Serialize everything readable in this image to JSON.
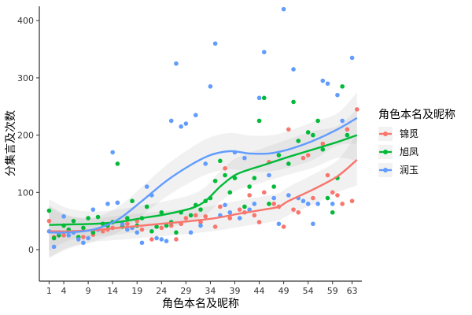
{
  "chart_data": {
    "type": "scatter",
    "title": "",
    "xlabel": "角色本名及昵称",
    "ylabel": "分集言及次数",
    "xlim": [
      -1,
      65
    ],
    "ylim": [
      -55,
      425
    ],
    "x_ticks": [
      1,
      4,
      9,
      14,
      19,
      24,
      29,
      34,
      39,
      44,
      49,
      54,
      59,
      63
    ],
    "y_ticks": [
      0,
      100,
      200,
      300,
      400
    ],
    "legend": {
      "title": "角色本名及昵称",
      "position": "right"
    },
    "series": [
      {
        "name": "锦觅",
        "color": "#F8766D",
        "points": [
          [
            1,
            50
          ],
          [
            2,
            22
          ],
          [
            3,
            28
          ],
          [
            4,
            25
          ],
          [
            6,
            30
          ],
          [
            8,
            22
          ],
          [
            10,
            26
          ],
          [
            12,
            32
          ],
          [
            13,
            35
          ],
          [
            14,
            38
          ],
          [
            15,
            82
          ],
          [
            16,
            44
          ],
          [
            17,
            45
          ],
          [
            19,
            50
          ],
          [
            20,
            35
          ],
          [
            22,
            18
          ],
          [
            24,
            38
          ],
          [
            26,
            42
          ],
          [
            27,
            18
          ],
          [
            28,
            45
          ],
          [
            29,
            55
          ],
          [
            31,
            60
          ],
          [
            32,
            48
          ],
          [
            33,
            58
          ],
          [
            35,
            40
          ],
          [
            36,
            75
          ],
          [
            37,
            142
          ],
          [
            38,
            55
          ],
          [
            40,
            70
          ],
          [
            41,
            65
          ],
          [
            42,
            95
          ],
          [
            43,
            60
          ],
          [
            44,
            48
          ],
          [
            45,
            100
          ],
          [
            46,
            153
          ],
          [
            47,
            80
          ],
          [
            48,
            75
          ],
          [
            49,
            40
          ],
          [
            50,
            210
          ],
          [
            51,
            70
          ],
          [
            52,
            65
          ],
          [
            53,
            160
          ],
          [
            54,
            165
          ],
          [
            55,
            90
          ],
          [
            57,
            185
          ],
          [
            58,
            130
          ],
          [
            59,
            100
          ],
          [
            60,
            95
          ],
          [
            61,
            80
          ],
          [
            62,
            210
          ],
          [
            63,
            85
          ],
          [
            64,
            245
          ]
        ],
        "trend": [
          [
            1,
            32
          ],
          [
            5,
            32
          ],
          [
            10,
            34
          ],
          [
            15,
            38
          ],
          [
            20,
            42
          ],
          [
            25,
            46
          ],
          [
            30,
            50
          ],
          [
            35,
            55
          ],
          [
            40,
            63
          ],
          [
            45,
            70
          ],
          [
            48,
            75
          ],
          [
            50,
            85
          ],
          [
            55,
            105
          ],
          [
            60,
            128
          ],
          [
            64,
            157
          ]
        ]
      },
      {
        "name": "旭凤",
        "color": "#00BA38",
        "points": [
          [
            1,
            68
          ],
          [
            2,
            20
          ],
          [
            3,
            25
          ],
          [
            4,
            42
          ],
          [
            5,
            35
          ],
          [
            6,
            50
          ],
          [
            7,
            22
          ],
          [
            8,
            38
          ],
          [
            9,
            55
          ],
          [
            10,
            30
          ],
          [
            11,
            57
          ],
          [
            12,
            45
          ],
          [
            13,
            42
          ],
          [
            14,
            48
          ],
          [
            15,
            150
          ],
          [
            16,
            40
          ],
          [
            17,
            55
          ],
          [
            18,
            85
          ],
          [
            19,
            42
          ],
          [
            20,
            55
          ],
          [
            21,
            75
          ],
          [
            22,
            32
          ],
          [
            23,
            40
          ],
          [
            24,
            65
          ],
          [
            25,
            42
          ],
          [
            26,
            48
          ],
          [
            27,
            30
          ],
          [
            28,
            65
          ],
          [
            30,
            60
          ],
          [
            31,
            78
          ],
          [
            32,
            70
          ],
          [
            33,
            85
          ],
          [
            34,
            90
          ],
          [
            35,
            120
          ],
          [
            36,
            155
          ],
          [
            37,
            130
          ],
          [
            38,
            100
          ],
          [
            39,
            125
          ],
          [
            41,
            75
          ],
          [
            42,
            110
          ],
          [
            43,
            125
          ],
          [
            44,
            225
          ],
          [
            45,
            265
          ],
          [
            46,
            80
          ],
          [
            47,
            110
          ],
          [
            48,
            165
          ],
          [
            50,
            150
          ],
          [
            51,
            258
          ],
          [
            52,
            190
          ],
          [
            54,
            205
          ],
          [
            55,
            200
          ],
          [
            56,
            225
          ],
          [
            57,
            175
          ],
          [
            58,
            90
          ],
          [
            59,
            65
          ],
          [
            60,
            125
          ],
          [
            61,
            285
          ],
          [
            62,
            200
          ]
        ],
        "trend": [
          [
            1,
            43
          ],
          [
            5,
            44
          ],
          [
            10,
            45
          ],
          [
            15,
            48
          ],
          [
            20,
            55
          ],
          [
            25,
            62
          ],
          [
            30,
            72
          ],
          [
            33,
            85
          ],
          [
            36,
            110
          ],
          [
            39,
            130
          ],
          [
            42,
            140
          ],
          [
            45,
            148
          ],
          [
            50,
            162
          ],
          [
            55,
            175
          ],
          [
            60,
            188
          ],
          [
            64,
            200
          ]
        ]
      },
      {
        "name": "润玉",
        "color": "#619CFF",
        "points": [
          [
            1,
            32
          ],
          [
            2,
            5
          ],
          [
            3,
            30
          ],
          [
            4,
            58
          ],
          [
            5,
            25
          ],
          [
            6,
            30
          ],
          [
            7,
            18
          ],
          [
            8,
            12
          ],
          [
            9,
            20
          ],
          [
            10,
            70
          ],
          [
            11,
            35
          ],
          [
            13,
            80
          ],
          [
            14,
            170
          ],
          [
            15,
            82
          ],
          [
            16,
            45
          ],
          [
            17,
            35
          ],
          [
            18,
            38
          ],
          [
            19,
            30
          ],
          [
            20,
            12
          ],
          [
            21,
            110
          ],
          [
            22,
            95
          ],
          [
            23,
            20
          ],
          [
            24,
            18
          ],
          [
            25,
            15
          ],
          [
            26,
            225
          ],
          [
            27,
            325
          ],
          [
            28,
            215
          ],
          [
            29,
            220
          ],
          [
            30,
            30
          ],
          [
            31,
            235
          ],
          [
            32,
            42
          ],
          [
            33,
            150
          ],
          [
            34,
            285
          ],
          [
            35,
            360
          ],
          [
            36,
            60
          ],
          [
            37,
            78
          ],
          [
            38,
            65
          ],
          [
            39,
            170
          ],
          [
            40,
            55
          ],
          [
            41,
            160
          ],
          [
            42,
            70
          ],
          [
            43,
            80
          ],
          [
            44,
            265
          ],
          [
            45,
            345
          ],
          [
            46,
            130
          ],
          [
            47,
            90
          ],
          [
            48,
            45
          ],
          [
            49,
            420
          ],
          [
            50,
            95
          ],
          [
            51,
            315
          ],
          [
            52,
            90
          ],
          [
            53,
            85
          ],
          [
            54,
            80
          ],
          [
            55,
            45
          ],
          [
            56,
            80
          ],
          [
            57,
            295
          ],
          [
            58,
            290
          ],
          [
            59,
            80
          ],
          [
            60,
            270
          ],
          [
            61,
            225
          ],
          [
            63,
            335
          ]
        ],
        "trend": [
          [
            1,
            30
          ],
          [
            5,
            30
          ],
          [
            10,
            35
          ],
          [
            15,
            52
          ],
          [
            20,
            85
          ],
          [
            25,
            120
          ],
          [
            30,
            148
          ],
          [
            34,
            165
          ],
          [
            38,
            172
          ],
          [
            42,
            168
          ],
          [
            46,
            168
          ],
          [
            50,
            175
          ],
          [
            55,
            190
          ],
          [
            60,
            210
          ],
          [
            64,
            230
          ]
        ]
      }
    ]
  }
}
